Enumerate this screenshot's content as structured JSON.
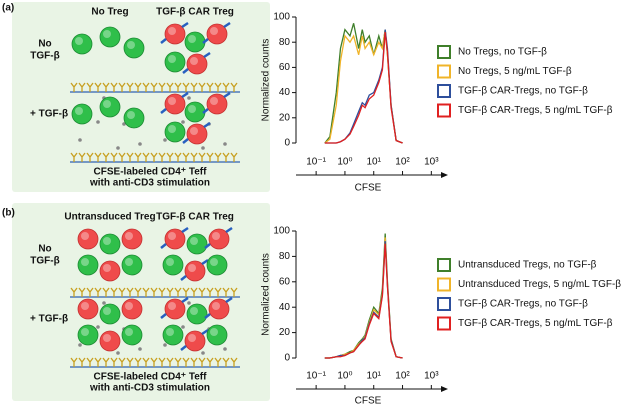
{
  "panels": [
    {
      "label": "(a)",
      "columns": [
        "No Treg",
        "TGF-β CAR Treg"
      ],
      "rows": [
        [
          "No",
          "TGF-β"
        ],
        [
          "+ TGF-β"
        ]
      ],
      "caption": [
        "CFSE-labeled CD4⁺ Teff",
        "with anti-CD3 stimulation"
      ]
    },
    {
      "label": "(b)",
      "columns": [
        "Untransduced Treg",
        "TGF-β CAR Treg"
      ],
      "rows": [
        [
          "No",
          "TGF-β"
        ],
        [
          "+ TGF-β"
        ]
      ],
      "caption": [
        "CFSE-labeled CD4⁺ Teff",
        "with anti-CD3 stimulation"
      ]
    }
  ],
  "chart_data": [
    {
      "type": "line",
      "x_label": "CFSE",
      "y_label": "Normalized counts",
      "log_x": true,
      "legend": "right",
      "x": [
        0.2,
        0.3,
        0.5,
        0.7,
        1,
        1.5,
        2,
        3,
        4,
        5,
        7,
        10,
        15,
        20,
        25,
        30,
        40,
        60,
        100
      ],
      "xlim": [
        0.02,
        2000
      ],
      "xticks": [
        {
          "value": 0.1,
          "label": "10⁻¹"
        },
        {
          "value": 1,
          "label": "10⁰"
        },
        {
          "value": 10,
          "label": "10¹"
        },
        {
          "value": 100,
          "label": "10²"
        },
        {
          "value": 1000,
          "label": "10³"
        }
      ],
      "ylim": [
        0,
        100
      ],
      "yticks": [
        0,
        20,
        40,
        60,
        80,
        100
      ],
      "series": [
        {
          "name": "No Tregs, no TGF-β",
          "color": "#3f7f2a",
          "values": [
            0,
            5,
            40,
            75,
            90,
            85,
            95,
            75,
            90,
            80,
            85,
            70,
            85,
            75,
            90,
            70,
            30,
            2,
            0
          ]
        },
        {
          "name": "No Tregs, 5 ng/mL TGF-β",
          "color": "#f0b429",
          "values": [
            0,
            3,
            30,
            65,
            85,
            80,
            85,
            70,
            85,
            75,
            80,
            70,
            80,
            75,
            90,
            70,
            30,
            2,
            0
          ]
        },
        {
          "name": "TGF-β CAR-Tregs, no TGF-β",
          "color": "#2e4f9c",
          "values": [
            0,
            0,
            0,
            1,
            3,
            8,
            15,
            25,
            32,
            30,
            38,
            40,
            50,
            60,
            90,
            75,
            30,
            2,
            0
          ]
        },
        {
          "name": "TGF-β CAR-Tregs, 5 ng/mL TGF-β",
          "color": "#e02020",
          "values": [
            0,
            0,
            0,
            1,
            3,
            7,
            13,
            22,
            30,
            28,
            35,
            38,
            48,
            58,
            88,
            72,
            28,
            2,
            0
          ]
        }
      ]
    },
    {
      "type": "line",
      "x_label": "CFSE",
      "y_label": "Normalized counts",
      "log_x": true,
      "legend": "right",
      "x": [
        0.2,
        0.3,
        0.5,
        0.7,
        1,
        1.5,
        2,
        3,
        4,
        5,
        7,
        10,
        15,
        20,
        25,
        30,
        40,
        60,
        100
      ],
      "xlim": [
        0.02,
        2000
      ],
      "xticks": [
        {
          "value": 0.1,
          "label": "10⁻¹"
        },
        {
          "value": 1,
          "label": "10⁰"
        },
        {
          "value": 10,
          "label": "10¹"
        },
        {
          "value": 100,
          "label": "10²"
        },
        {
          "value": 1000,
          "label": "10³"
        }
      ],
      "ylim": [
        0,
        100
      ],
      "yticks": [
        0,
        20,
        40,
        60,
        80,
        100
      ],
      "series": [
        {
          "name": "Untransduced Tregs, no TGF-β",
          "color": "#3f7f2a",
          "values": [
            0,
            0,
            1,
            2,
            3,
            5,
            6,
            12,
            15,
            18,
            30,
            40,
            35,
            55,
            98,
            60,
            15,
            1,
            0
          ]
        },
        {
          "name": "Untransduced Tregs, 5 ng/mL TGF-β",
          "color": "#f0b429",
          "values": [
            0,
            0,
            1,
            2,
            3,
            4,
            6,
            11,
            14,
            17,
            28,
            38,
            34,
            52,
            95,
            58,
            14,
            1,
            0
          ]
        },
        {
          "name": "TGF-β CAR-Tregs, no TGF-β",
          "color": "#2e4f9c",
          "values": [
            0,
            0,
            1,
            2,
            2,
            4,
            5,
            10,
            14,
            16,
            27,
            36,
            32,
            50,
            92,
            57,
            14,
            1,
            0
          ]
        },
        {
          "name": "TGF-β CAR-Tregs, 5 ng/mL TGF-β",
          "color": "#e02020",
          "values": [
            0,
            0,
            1,
            1,
            2,
            4,
            5,
            10,
            13,
            15,
            26,
            35,
            31,
            49,
            90,
            56,
            13,
            1,
            0
          ]
        }
      ]
    }
  ]
}
